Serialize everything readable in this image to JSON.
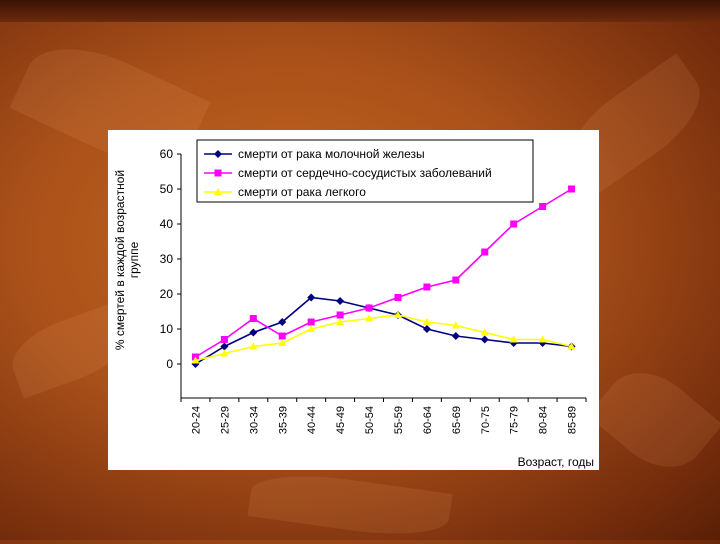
{
  "colors": {
    "background": "#a9501a",
    "panel": "#ffffff",
    "series_breast": "#000080",
    "series_cardio": "#ff00ff",
    "series_lung": "#ffff00"
  },
  "chart_data": {
    "type": "line",
    "xlabel": "Возраст, годы",
    "ylabel": "% смертей в каждой возрастной группе",
    "ylim": [
      0,
      60
    ],
    "yticks": [
      0,
      10,
      20,
      30,
      40,
      50,
      60
    ],
    "grid": false,
    "legend_position": "top",
    "categories": [
      "20-24",
      "25-29",
      "30-34",
      "35-39",
      "40-44",
      "45-49",
      "50-54",
      "55-59",
      "60-64",
      "65-69",
      "70-75",
      "75-79",
      "80-84",
      "85-89"
    ],
    "series": [
      {
        "name": "смерти от рака молочной железы",
        "marker": "diamond",
        "color": "#000080",
        "values": [
          0,
          5,
          9,
          12,
          19,
          18,
          16,
          14,
          10,
          8,
          7,
          6,
          6,
          5
        ]
      },
      {
        "name": "смерти от сердечно-сосудистых заболеваний",
        "marker": "square",
        "color": "#ff00ff",
        "values": [
          2,
          7,
          13,
          8,
          12,
          14,
          16,
          19,
          22,
          24,
          32,
          40,
          45,
          50
        ]
      },
      {
        "name": "смерти от рака легкого",
        "marker": "triangle",
        "color": "#ffff00",
        "values": [
          1,
          3,
          5,
          6,
          10,
          12,
          13,
          14,
          12,
          11,
          9,
          7,
          7,
          5
        ]
      }
    ]
  }
}
